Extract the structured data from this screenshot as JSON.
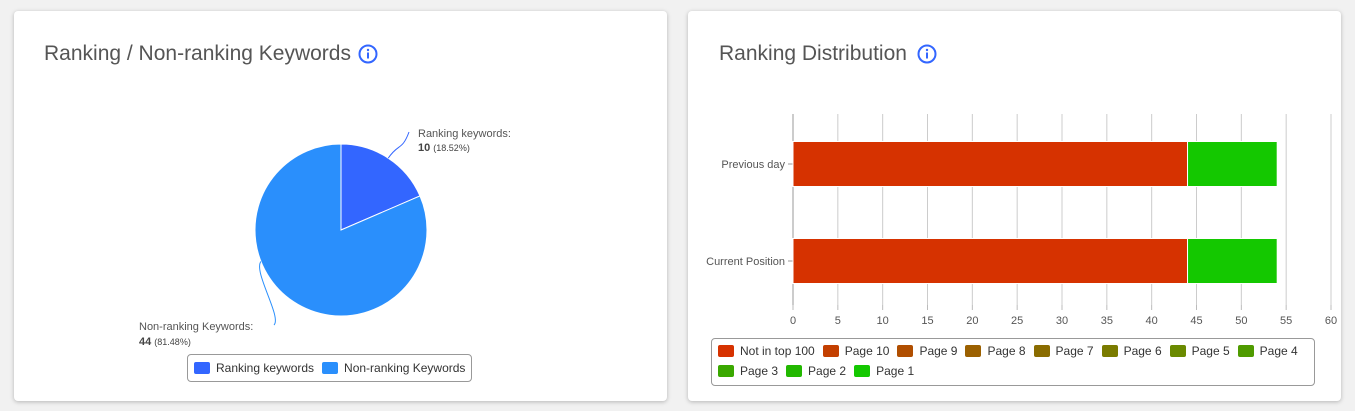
{
  "left_card": {
    "title": "Ranking / Non-ranking Keywords",
    "info_icon": "info-icon",
    "chart_data": {
      "type": "pie",
      "slices": [
        {
          "name": "Ranking keywords",
          "value": 10,
          "percent": "(18.52%)",
          "color": "#3366ff",
          "label_title": "Ranking keywords:"
        },
        {
          "name": "Non-ranking Keywords",
          "value": 44,
          "percent": "(81.48%)",
          "color": "#2a8ffc",
          "label_title": "Non-ranking Keywords:"
        }
      ],
      "legend": [
        "Ranking keywords",
        "Non-ranking Keywords"
      ],
      "legend_placement": "bottom"
    }
  },
  "right_card": {
    "title": "Ranking Distribution",
    "info_icon": "info-icon",
    "chart_data": {
      "type": "bar",
      "orientation": "horizontal",
      "stacked": true,
      "categories": [
        "Previous day",
        "Current Position"
      ],
      "series": [
        {
          "name": "Not in top 100",
          "values": [
            44,
            44
          ],
          "color": "#d63200"
        },
        {
          "name": "Page 10",
          "values": [
            0,
            0
          ],
          "color": "#c33f00"
        },
        {
          "name": "Page 9",
          "values": [
            0,
            0
          ],
          "color": "#b04e00"
        },
        {
          "name": "Page 8",
          "values": [
            0,
            0
          ],
          "color": "#9b6000"
        },
        {
          "name": "Page 7",
          "values": [
            0,
            0
          ],
          "color": "#8a6c00"
        },
        {
          "name": "Page 6",
          "values": [
            0,
            0
          ],
          "color": "#7a7b00"
        },
        {
          "name": "Page 5",
          "values": [
            0,
            0
          ],
          "color": "#6a8a00"
        },
        {
          "name": "Page 4",
          "values": [
            0,
            0
          ],
          "color": "#4f9b00"
        },
        {
          "name": "Page 3",
          "values": [
            0,
            0
          ],
          "color": "#3aa800"
        },
        {
          "name": "Page 2",
          "values": [
            0,
            0
          ],
          "color": "#22b800"
        },
        {
          "name": "Page 1",
          "values": [
            10,
            10
          ],
          "color": "#14c800"
        }
      ],
      "xlim": [
        0,
        60
      ],
      "xticks": [
        "0",
        "5",
        "10",
        "15",
        "20",
        "25",
        "30",
        "35",
        "40",
        "45",
        "50",
        "55",
        "60"
      ],
      "grid": true,
      "legend_placement": "bottom"
    }
  }
}
